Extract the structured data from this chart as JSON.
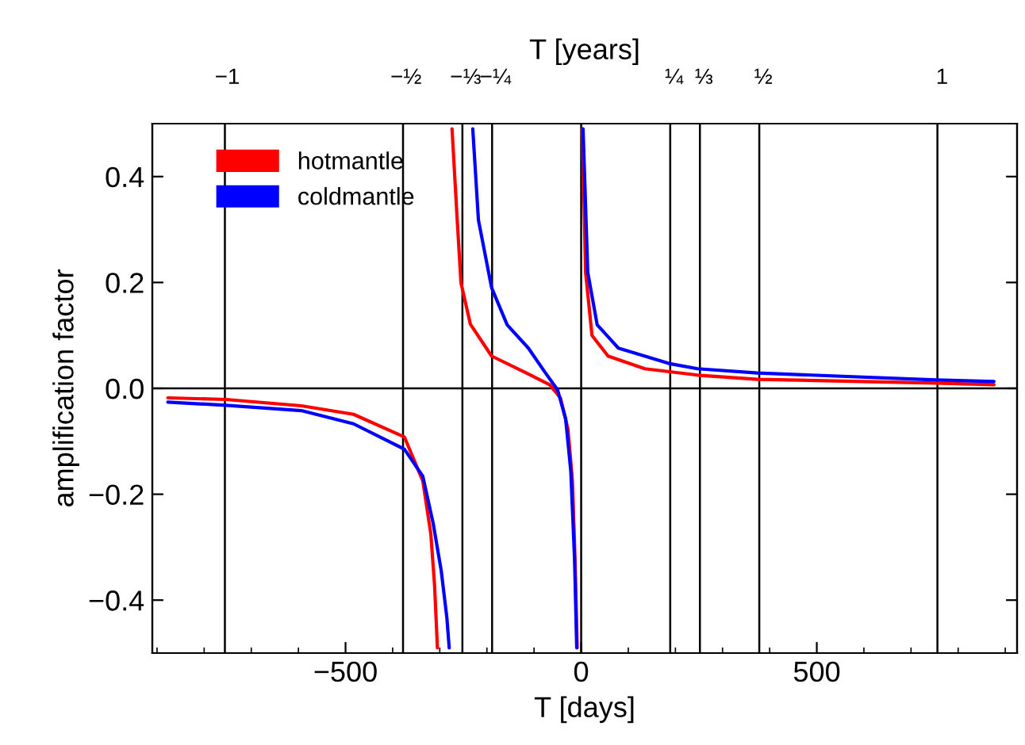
{
  "chart_data": {
    "type": "line",
    "xlabel": "T [days]",
    "ylabel": "amplification factor",
    "x2label": "T [years]",
    "xlim": [
      -910,
      925
    ],
    "xticks": [
      {
        "value": -500,
        "label": "−500"
      },
      0,
      500
    ],
    "ylim": [
      -0.5,
      0.5
    ],
    "yticks": [
      {
        "value": -0.4,
        "label": "−0.4"
      },
      {
        "value": -0.2,
        "label": "−0.2"
      },
      {
        "value": 0,
        "label": "0.0"
      },
      0.2,
      0.4
    ],
    "x2lim": [
      -1.21,
      1.21
    ],
    "x2ticks": [
      {
        "value": -1,
        "label": "−1"
      },
      {
        "value": -0.5,
        "label": "−½"
      },
      {
        "value": -0.3333,
        "label": "−⅓"
      },
      {
        "value": -0.25,
        "label": "−¼"
      },
      {
        "value": 0.25,
        "label": "¼"
      },
      {
        "value": 0.3333,
        "label": "⅓"
      },
      {
        "value": 0.5,
        "label": "½"
      },
      1
    ],
    "ref_lines": [
      {
        "axis": "y",
        "value": 0
      },
      {
        "axis": "x",
        "value": 0
      },
      {
        "axis": "x",
        "value": -756
      },
      {
        "axis": "x",
        "value": -378
      },
      {
        "axis": "x",
        "value": -252
      },
      {
        "axis": "x",
        "value": -189
      },
      {
        "axis": "x",
        "value": 189
      },
      {
        "axis": "x",
        "value": 252
      },
      {
        "axis": "x",
        "value": 378
      },
      {
        "axis": "x",
        "value": 756
      }
    ],
    "legend": "top left",
    "grid": false,
    "series": [
      {
        "name": "hotmantle",
        "color": "#ff0000",
        "x": [
          -877,
          -754,
          -594,
          -483,
          -375,
          -336,
          -319,
          -311,
          -305,
          null,
          -274,
          -263,
          -255,
          -235,
          -190,
          -112,
          -67,
          -44,
          -28,
          -18.5,
          -13,
          -8.4,
          null,
          2.7,
          9.4,
          23,
          57,
          135,
          247,
          374,
          753,
          876
        ],
        "values": [
          -0.018,
          -0.021,
          -0.033,
          -0.049,
          -0.092,
          -0.175,
          -0.275,
          -0.373,
          -0.49,
          null,
          0.49,
          0.318,
          0.199,
          0.121,
          0.061,
          0.027,
          0.007,
          -0.018,
          -0.077,
          -0.175,
          -0.323,
          -0.49,
          null,
          0.49,
          0.219,
          0.1,
          0.061,
          0.037,
          0.025,
          0.017,
          0.01,
          0.007
        ]
      },
      {
        "name": "coldmantle",
        "color": "#0000ff",
        "x": [
          -877,
          -754,
          -594,
          -483,
          -375,
          -336,
          -314,
          -297,
          -285,
          -280,
          null,
          -230,
          -218,
          -190,
          -157,
          -112,
          -78,
          -50,
          -33,
          -22,
          -14,
          -9.4,
          null,
          4,
          14,
          34,
          79,
          186,
          247,
          374,
          753,
          876
        ],
        "values": [
          -0.026,
          -0.032,
          -0.042,
          -0.067,
          -0.115,
          -0.166,
          -0.255,
          -0.344,
          -0.433,
          -0.49,
          null,
          0.49,
          0.318,
          0.19,
          0.12,
          0.076,
          0.032,
          -0.003,
          -0.057,
          -0.156,
          -0.323,
          -0.49,
          null,
          0.49,
          0.219,
          0.12,
          0.076,
          0.047,
          0.037,
          0.029,
          0.016,
          0.013
        ]
      }
    ]
  }
}
